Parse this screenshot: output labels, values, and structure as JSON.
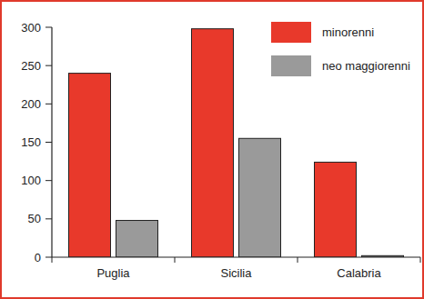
{
  "chart_data": {
    "type": "bar",
    "categories": [
      "Puglia",
      "Sicilia",
      "Calabria"
    ],
    "series": [
      {
        "name": "minorenni",
        "color": "#e8392b",
        "values": [
          240,
          298,
          124
        ]
      },
      {
        "name": "neo maggiorenni",
        "color": "#9a9a9a",
        "values": [
          48,
          155,
          2
        ]
      }
    ],
    "ylim": [
      0,
      300
    ],
    "yticks": [
      0,
      50,
      100,
      150,
      200,
      250,
      300
    ],
    "grid": false,
    "legend": "top-right"
  }
}
